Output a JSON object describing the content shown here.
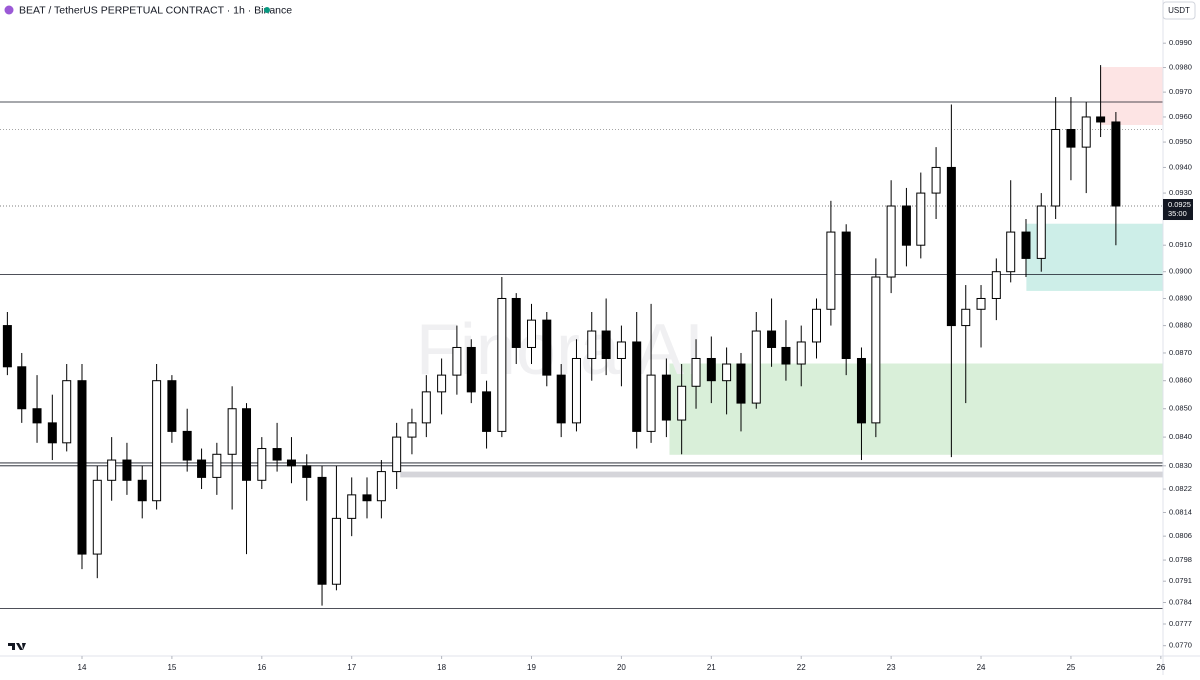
{
  "chart_data": {
    "type": "candlestick",
    "title": "BEAT / TetherUS PERPETUAL CONTRACT · 1h · Binance",
    "currency": "USDT",
    "watermark": "Finora AI",
    "log_scale": true,
    "up_color": "#ffffff",
    "down_color": "#000000",
    "x": [
      13.17,
      13.33,
      13.5,
      13.67,
      13.83,
      14,
      14.17,
      14.33,
      14.5,
      14.67,
      14.83,
      15,
      15.17,
      15.33,
      15.5,
      15.67,
      15.83,
      16,
      16.17,
      16.33,
      16.5,
      16.67,
      16.83,
      17,
      17.17,
      17.33,
      17.5,
      17.67,
      17.83,
      18,
      18.17,
      18.33,
      18.5,
      18.67,
      18.83,
      19,
      19.17,
      19.33,
      19.5,
      19.67,
      19.83,
      20,
      20.17,
      20.33,
      20.5,
      20.67,
      20.83,
      21,
      21.17,
      21.33,
      21.5,
      21.67,
      21.83,
      22,
      22.17,
      22.33,
      22.5,
      22.67,
      22.83,
      23,
      23.17,
      23.33,
      23.5,
      23.67,
      23.83,
      24,
      24.17,
      24.33,
      24.5,
      24.67,
      24.83,
      25,
      25.17,
      25.33,
      25.5
    ],
    "open": [
      0.088,
      0.0865,
      0.085,
      0.0845,
      0.0838,
      0.086,
      0.08,
      0.0825,
      0.0832,
      0.0825,
      0.0818,
      0.086,
      0.0842,
      0.0832,
      0.0826,
      0.0834,
      0.085,
      0.0825,
      0.0836,
      0.0832,
      0.083,
      0.0826,
      0.079,
      0.0812,
      0.082,
      0.0818,
      0.0828,
      0.084,
      0.0845,
      0.0856,
      0.0862,
      0.0872,
      0.0856,
      0.0842,
      0.089,
      0.0872,
      0.0882,
      0.0862,
      0.0845,
      0.0868,
      0.0878,
      0.0868,
      0.0874,
      0.0842,
      0.0862,
      0.0846,
      0.0858,
      0.0868,
      0.086,
      0.0866,
      0.0852,
      0.0878,
      0.0872,
      0.0866,
      0.0874,
      0.0886,
      0.0915,
      0.0868,
      0.0845,
      0.0898,
      0.0925,
      0.091,
      0.093,
      0.094,
      0.088,
      0.0886,
      0.089,
      0.09,
      0.0915,
      0.0905,
      0.0925,
      0.0955,
      0.0948,
      0.096,
      0.0958
    ],
    "high": [
      0.0885,
      0.087,
      0.0862,
      0.0855,
      0.0866,
      0.0866,
      0.083,
      0.084,
      0.0838,
      0.083,
      0.0866,
      0.0862,
      0.085,
      0.0836,
      0.0838,
      0.0858,
      0.0852,
      0.084,
      0.0845,
      0.084,
      0.0834,
      0.083,
      0.083,
      0.0826,
      0.0826,
      0.0832,
      0.0845,
      0.085,
      0.0862,
      0.0868,
      0.088,
      0.0875,
      0.086,
      0.0898,
      0.0892,
      0.0888,
      0.0885,
      0.0866,
      0.0875,
      0.0885,
      0.089,
      0.088,
      0.0885,
      0.0888,
      0.0868,
      0.0866,
      0.0875,
      0.0876,
      0.0872,
      0.087,
      0.0885,
      0.089,
      0.0882,
      0.088,
      0.089,
      0.0927,
      0.0918,
      0.0872,
      0.0905,
      0.0935,
      0.0932,
      0.0938,
      0.0948,
      0.0965,
      0.0895,
      0.0895,
      0.0905,
      0.0935,
      0.092,
      0.093,
      0.0968,
      0.0968,
      0.0966,
      0.0981,
      0.0962
    ],
    "low": [
      0.0862,
      0.0845,
      0.0838,
      0.0832,
      0.0835,
      0.0795,
      0.0792,
      0.0818,
      0.082,
      0.0812,
      0.0815,
      0.0838,
      0.0828,
      0.0822,
      0.082,
      0.0815,
      0.08,
      0.0822,
      0.0828,
      0.0824,
      0.0818,
      0.0783,
      0.0788,
      0.0806,
      0.0812,
      0.0812,
      0.0822,
      0.0834,
      0.084,
      0.0848,
      0.0855,
      0.0852,
      0.0836,
      0.084,
      0.0866,
      0.0866,
      0.0858,
      0.084,
      0.0842,
      0.086,
      0.0862,
      0.0858,
      0.0836,
      0.0838,
      0.084,
      0.0834,
      0.085,
      0.0852,
      0.0848,
      0.0842,
      0.085,
      0.0865,
      0.086,
      0.0858,
      0.0868,
      0.088,
      0.0862,
      0.0832,
      0.084,
      0.0892,
      0.0902,
      0.0905,
      0.092,
      0.0833,
      0.0852,
      0.0872,
      0.0882,
      0.0896,
      0.0898,
      0.09,
      0.092,
      0.0935,
      0.093,
      0.0952,
      0.091
    ],
    "close": [
      0.0865,
      0.085,
      0.0845,
      0.0838,
      0.086,
      0.08,
      0.0825,
      0.0832,
      0.0825,
      0.0818,
      0.086,
      0.0842,
      0.0832,
      0.0826,
      0.0834,
      0.085,
      0.0825,
      0.0836,
      0.0832,
      0.083,
      0.0826,
      0.079,
      0.0812,
      0.082,
      0.0818,
      0.0828,
      0.084,
      0.0845,
      0.0856,
      0.0862,
      0.0872,
      0.0856,
      0.0842,
      0.089,
      0.0872,
      0.0882,
      0.0862,
      0.0845,
      0.0868,
      0.0878,
      0.0868,
      0.0874,
      0.0842,
      0.0862,
      0.0846,
      0.0858,
      0.0868,
      0.086,
      0.0866,
      0.0852,
      0.0878,
      0.0872,
      0.0866,
      0.0874,
      0.0886,
      0.0915,
      0.0868,
      0.0845,
      0.0898,
      0.0925,
      0.091,
      0.093,
      0.094,
      0.088,
      0.0886,
      0.089,
      0.09,
      0.0915,
      0.0905,
      0.0925,
      0.0955,
      0.0948,
      0.096,
      0.0958,
      0.0925
    ],
    "xlim": [
      13.088,
      26.024
    ],
    "xticks": [
      14,
      15,
      16,
      17,
      18,
      19,
      20,
      21,
      22,
      23,
      24,
      25,
      26
    ],
    "ylim": [
      0.07667,
      0.1008
    ],
    "yticks": [
      {
        "value": 0.099,
        "label": "0.0990"
      },
      {
        "value": 0.098,
        "label": "0.0980"
      },
      {
        "value": 0.097,
        "label": "0.0970"
      },
      {
        "value": 0.096,
        "label": "0.0960"
      },
      {
        "value": 0.095,
        "label": "0.0950"
      },
      {
        "value": 0.094,
        "label": "0.0940"
      },
      {
        "value": 0.093,
        "label": "0.0930"
      },
      {
        "value": 0.091,
        "label": "0.0910"
      },
      {
        "value": 0.09,
        "label": "0.0900"
      },
      {
        "value": 0.089,
        "label": "0.0890"
      },
      {
        "value": 0.088,
        "label": "0.0880"
      },
      {
        "value": 0.087,
        "label": "0.0870"
      },
      {
        "value": 0.086,
        "label": "0.0860"
      },
      {
        "value": 0.085,
        "label": "0.0850"
      },
      {
        "value": 0.084,
        "label": "0.0840"
      },
      {
        "value": 0.083,
        "label": "0.0830"
      },
      {
        "value": 0.0822,
        "label": "0.0822"
      },
      {
        "value": 0.0814,
        "label": "0.0814"
      },
      {
        "value": 0.0806,
        "label": "0.0806"
      },
      {
        "value": 0.0798,
        "label": "0.0798"
      },
      {
        "value": 0.0791,
        "label": "0.0791"
      },
      {
        "value": 0.0784,
        "label": "0.0784"
      },
      {
        "value": 0.0777,
        "label": "0.0777"
      },
      {
        "value": 0.077,
        "label": "0.0770"
      }
    ],
    "levels": [
      0.0966,
      0.0899,
      0.0831,
      0.083,
      0.0782
    ],
    "dotted_levels": [
      0.0955
    ],
    "zones": [
      {
        "x_from": 25.33,
        "top": 0.098,
        "bottom": 0.0957,
        "color": "#fde4e4"
      },
      {
        "x_from": 24.51,
        "top": 0.0918,
        "bottom": 0.0893,
        "color": "#cdeee8"
      },
      {
        "x_from": 20.54,
        "top": 0.0866,
        "bottom": 0.0834,
        "color": "#d9efd9"
      },
      {
        "x_from": 17.54,
        "top": 0.0828,
        "bottom": 0.0826,
        "color": "#d5d5da"
      }
    ],
    "last_price": {
      "value": 0.0925,
      "label": "0.0925"
    },
    "countdown": "35:00"
  }
}
